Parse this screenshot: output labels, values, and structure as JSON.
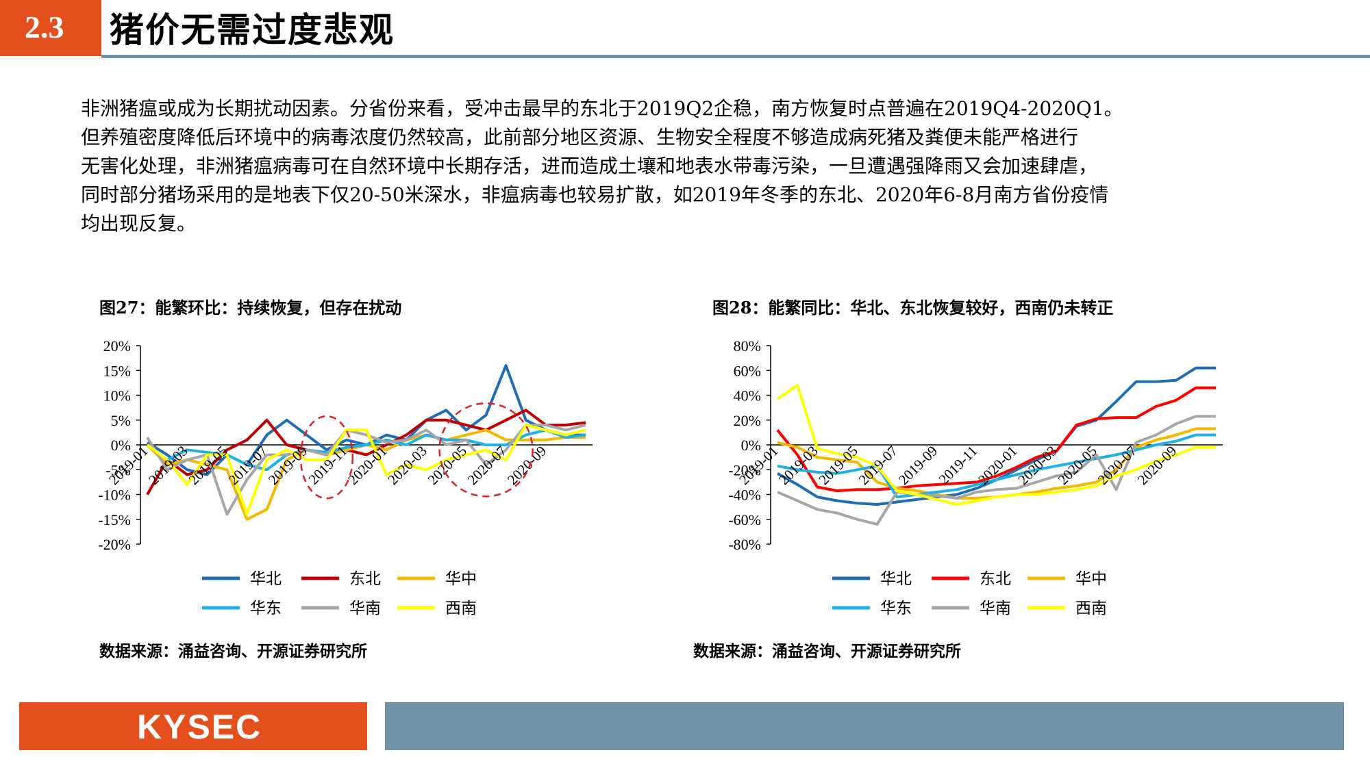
{
  "header": {
    "section_number": "2.3",
    "title": "猪价无需过度悲观"
  },
  "intro": [
    "非洲猪瘟或成为长期扰动因素。分省份来看，受冲击最早的东北于2019Q2企稳，南方恢复时点普遍在2019Q4-2020Q1。",
    "但养殖密度降低后环境中的病毒浓度仍然较高，此前部分地区资源、生物安全程度不够造成病死猪及粪便未能严格进行",
    "无害化处理，非洲猪瘟病毒可在自然环境中长期存活，进而造成土壤和地表水带毒污染，一旦遭遇强降雨又会加速肆虐，",
    "同时部分猪场采用的是地表下仅20-50米深水，非瘟病毒也较易扩散，如2019年冬季的东北、2020年6-8月南方省份疫情",
    "均出现反复。"
  ],
  "figures": {
    "left": {
      "title": "图27：能繁环比：持续恢复，但存在扰动",
      "source": "数据来源：涌益咨询、开源证券研究所"
    },
    "right": {
      "title": "图28：能繁同比：华北、东北恢复较好，西南仍未转正",
      "source": "数据来源：涌益咨询、开源证券研究所"
    }
  },
  "footer": {
    "logo_text": "KYSEC",
    "brand_color": "#e4501d",
    "bar_color": "#7093a8"
  },
  "chart_data": [
    {
      "type": "line",
      "title": "图27：能繁环比：持续恢复，但存在扰动",
      "y_tick_labels": [
        "20%",
        "15%",
        "10%",
        "5%",
        "0%",
        "-5%",
        "-10%",
        "-15%",
        "-20%"
      ],
      "ylim": [
        -20,
        20
      ],
      "y_unit": "%",
      "x": [
        "2019-01",
        "2019-02",
        "2019-03",
        "2019-04",
        "2019-05",
        "2019-06",
        "2019-07",
        "2019-08",
        "2019-09",
        "2019-10",
        "2019-11",
        "2019-12",
        "2020-01",
        "2020-02",
        "2020-03",
        "2020-04",
        "2020-05",
        "2020-06",
        "2020-07",
        "2020-08",
        "2020-09",
        "2020-10",
        "2020-11"
      ],
      "x_tick_labels": [
        "2019-01",
        "2019-03",
        "2019-05",
        "2019-07",
        "2019-09",
        "2019-11",
        "2020-01",
        "2020-03",
        "2020-05",
        "2020-07",
        "2020-09"
      ],
      "grid": false,
      "legend_position": "bottom",
      "annotations": [
        "red dashed circle around 2019-10",
        "red dashed circle around 2020-05 to 2020-07"
      ],
      "series": [
        {
          "name": "华北",
          "color": "#1f6db5",
          "values": [
            0.5,
            -2,
            -5,
            -6,
            -2,
            -4,
            2,
            5,
            2,
            -1,
            1,
            0,
            2,
            1,
            5,
            7,
            3,
            6,
            16,
            5,
            3,
            2,
            2
          ]
        },
        {
          "name": "东北",
          "color": "#c00000",
          "values": [
            -10,
            -3,
            -6,
            -5,
            -1,
            1,
            5,
            0,
            -1,
            -2,
            -1,
            -2,
            0,
            2,
            5,
            5,
            4,
            3,
            5,
            7,
            4,
            4,
            4.5
          ]
        },
        {
          "name": "华中",
          "color": "#f5b800",
          "values": [
            0,
            -4,
            -3,
            -4,
            -5,
            -15,
            -13,
            -3,
            -1,
            -2,
            -1,
            0,
            -1,
            1,
            2,
            1,
            2,
            3,
            1,
            1,
            1,
            1.5,
            1.5
          ]
        },
        {
          "name": "华东",
          "color": "#1fb0e6",
          "values": [
            0,
            -3,
            -1,
            -1.5,
            -2,
            -4,
            -5,
            -2,
            -1,
            -1.5,
            -0.5,
            0,
            1,
            0,
            2,
            1,
            1,
            0,
            0,
            2,
            3,
            1.5,
            2
          ]
        },
        {
          "name": "华南",
          "color": "#a6a6a6",
          "values": [
            1.5,
            -5,
            -3,
            -2,
            -14,
            -7,
            -2,
            -2,
            -1,
            -2,
            3,
            2,
            0.5,
            1,
            3,
            0,
            1,
            -4,
            -1,
            4,
            4,
            3,
            4
          ]
        },
        {
          "name": "西南",
          "color": "#ffff00",
          "values": [
            0,
            -3,
            -8,
            -2,
            -2,
            -14,
            -3,
            -1,
            -3,
            -3,
            3,
            3,
            -6,
            -4,
            -5,
            -3,
            -2,
            -1,
            -3,
            4,
            3,
            2,
            3
          ]
        }
      ]
    },
    {
      "type": "line",
      "title": "图28：能繁同比：华北、东北恢复较好，西南仍未转正",
      "y_tick_labels": [
        "80%",
        "60%",
        "40%",
        "20%",
        "0%",
        "-20%",
        "-40%",
        "-60%",
        "-80%"
      ],
      "ylim": [
        -80,
        80
      ],
      "y_unit": "%",
      "x": [
        "2019-01",
        "2019-02",
        "2019-03",
        "2019-04",
        "2019-05",
        "2019-06",
        "2019-07",
        "2019-08",
        "2019-09",
        "2019-10",
        "2019-11",
        "2019-12",
        "2020-01",
        "2020-02",
        "2020-03",
        "2020-04",
        "2020-05",
        "2020-06",
        "2020-07",
        "2020-08",
        "2020-09",
        "2020-10",
        "2020-11"
      ],
      "x_tick_labels": [
        "2019-01",
        "2019-03",
        "2019-05",
        "2019-07",
        "2019-09",
        "2019-11",
        "2020-01",
        "2020-03",
        "2020-05",
        "2020-07",
        "2020-09"
      ],
      "grid": false,
      "legend_position": "bottom",
      "series": [
        {
          "name": "华北",
          "color": "#1f6db5",
          "values": [
            -23,
            -32,
            -42,
            -45,
            -47,
            -48,
            -46,
            -44,
            -42,
            -40,
            -35,
            -28,
            -20,
            -12,
            -5,
            15,
            20,
            35,
            51,
            51,
            52,
            62,
            62
          ]
        },
        {
          "name": "东北",
          "color": "#ff0000",
          "values": [
            12,
            -8,
            -34,
            -37,
            -36,
            -36,
            -35,
            -33,
            -32,
            -31,
            -30,
            -25,
            -18,
            -10,
            -5,
            16,
            21,
            22,
            22,
            31,
            36,
            46,
            46
          ]
        },
        {
          "name": "华中",
          "color": "#f5b800",
          "values": [
            2,
            -2,
            -10,
            -12,
            -14,
            -30,
            -35,
            -37,
            -40,
            -43,
            -43,
            -42,
            -40,
            -38,
            -35,
            -33,
            -30,
            -20,
            -2,
            4,
            8,
            13,
            13
          ]
        },
        {
          "name": "华东",
          "color": "#1fb0e6",
          "values": [
            -17,
            -20,
            -22,
            -23,
            -20,
            -17,
            -42,
            -40,
            -38,
            -36,
            -32,
            -28,
            -24,
            -20,
            -17,
            -14,
            -11,
            -8,
            -4,
            0,
            3,
            8,
            8
          ]
        },
        {
          "name": "华南",
          "color": "#a6a6a6",
          "values": [
            -38,
            -45,
            -52,
            -55,
            -60,
            -64,
            -38,
            -40,
            -41,
            -43,
            -38,
            -36,
            -35,
            -30,
            -25,
            -22,
            -8,
            -36,
            2,
            8,
            17,
            23,
            23
          ]
        },
        {
          "name": "西南",
          "color": "#ffff00",
          "values": [
            37,
            48,
            -3,
            -7,
            -10,
            -17,
            -37,
            -40,
            -44,
            -48,
            -45,
            -42,
            -40,
            -40,
            -38,
            -36,
            -33,
            -25,
            -20,
            -13,
            -8,
            -2,
            -2
          ]
        }
      ]
    }
  ]
}
